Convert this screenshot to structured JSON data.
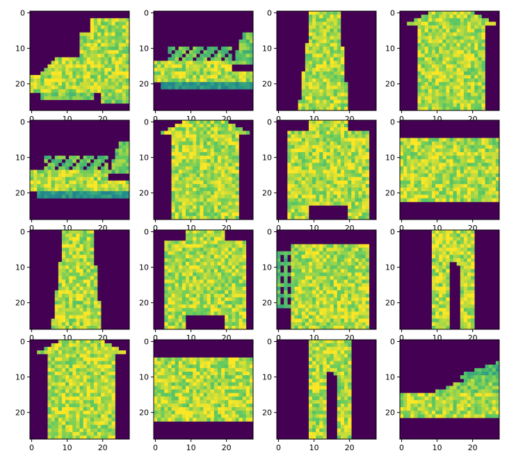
{
  "figure": {
    "rows": 4,
    "cols": 4,
    "colormap": "viridis",
    "background_color": "#440154",
    "foreground_color": "#fde725"
  },
  "chart_data": [
    {
      "type": "heatmap",
      "shape": "ankle-boot",
      "x_ticks": [
        "0",
        "10",
        "20"
      ],
      "y_ticks": [
        "0",
        "10",
        "20"
      ],
      "xlim": [
        -0.5,
        27.5
      ],
      "ylim": [
        27.5,
        -0.5
      ],
      "grid": false
    },
    {
      "type": "heatmap",
      "shape": "sandal",
      "x_ticks": [
        "0",
        "10",
        "20"
      ],
      "y_ticks": [
        "0",
        "10",
        "20"
      ],
      "xlim": [
        -0.5,
        27.5
      ],
      "ylim": [
        27.5,
        -0.5
      ],
      "grid": false
    },
    {
      "type": "heatmap",
      "shape": "dress",
      "x_ticks": [
        "0",
        "10",
        "20"
      ],
      "y_ticks": [
        "0",
        "10",
        "20"
      ],
      "xlim": [
        -0.5,
        27.5
      ],
      "ylim": [
        27.5,
        -0.5
      ],
      "grid": false
    },
    {
      "type": "heatmap",
      "shape": "coat",
      "x_ticks": [
        "0",
        "10",
        "20"
      ],
      "y_ticks": [
        "0",
        "10",
        "20"
      ],
      "xlim": [
        -0.5,
        27.5
      ],
      "ylim": [
        27.5,
        -0.5
      ],
      "grid": false
    },
    {
      "type": "heatmap",
      "shape": "sandal",
      "x_ticks": [
        "0",
        "10",
        "20"
      ],
      "y_ticks": [
        "0",
        "10",
        "20"
      ],
      "xlim": [
        -0.5,
        27.5
      ],
      "ylim": [
        27.5,
        -0.5
      ],
      "grid": false
    },
    {
      "type": "heatmap",
      "shape": "coat",
      "x_ticks": [
        "0",
        "10",
        "20"
      ],
      "y_ticks": [
        "0",
        "10",
        "20"
      ],
      "xlim": [
        -0.5,
        27.5
      ],
      "ylim": [
        27.5,
        -0.5
      ],
      "grid": false
    },
    {
      "type": "heatmap",
      "shape": "shirt",
      "x_ticks": [
        "0",
        "10",
        "20"
      ],
      "y_ticks": [
        "0",
        "10",
        "20"
      ],
      "xlim": [
        -0.5,
        27.5
      ],
      "ylim": [
        27.5,
        -0.5
      ],
      "grid": false
    },
    {
      "type": "heatmap",
      "shape": "bag",
      "x_ticks": [
        "0",
        "10",
        "20"
      ],
      "y_ticks": [
        "0",
        "10",
        "20"
      ],
      "xlim": [
        -0.5,
        27.5
      ],
      "ylim": [
        27.5,
        -0.5
      ],
      "grid": false
    },
    {
      "type": "heatmap",
      "shape": "dress",
      "x_ticks": [
        "0",
        "10",
        "20"
      ],
      "y_ticks": [
        "0",
        "10",
        "20"
      ],
      "xlim": [
        -0.5,
        27.5
      ],
      "ylim": [
        27.5,
        -0.5
      ],
      "grid": false
    },
    {
      "type": "heatmap",
      "shape": "shirt",
      "x_ticks": [
        "0",
        "10",
        "20"
      ],
      "y_ticks": [
        "0",
        "10",
        "20"
      ],
      "xlim": [
        -0.5,
        27.5
      ],
      "ylim": [
        27.5,
        -0.5
      ],
      "grid": false
    },
    {
      "type": "heatmap",
      "shape": "bag-handle",
      "x_ticks": [
        "0",
        "10",
        "20"
      ],
      "y_ticks": [
        "0",
        "10",
        "20"
      ],
      "xlim": [
        -0.5,
        27.5
      ],
      "ylim": [
        27.5,
        -0.5
      ],
      "grid": false
    },
    {
      "type": "heatmap",
      "shape": "trouser",
      "x_ticks": [
        "0",
        "10",
        "20"
      ],
      "y_ticks": [
        "0",
        "10",
        "20"
      ],
      "xlim": [
        -0.5,
        27.5
      ],
      "ylim": [
        27.5,
        -0.5
      ],
      "grid": false
    },
    {
      "type": "heatmap",
      "shape": "coat",
      "x_ticks": [
        "0",
        "10",
        "20"
      ],
      "y_ticks": [
        "0",
        "10",
        "20"
      ],
      "xlim": [
        -0.5,
        27.5
      ],
      "ylim": [
        27.5,
        -0.5
      ],
      "grid": false
    },
    {
      "type": "heatmap",
      "shape": "bag",
      "x_ticks": [
        "0",
        "10",
        "20"
      ],
      "y_ticks": [
        "0",
        "10",
        "20"
      ],
      "xlim": [
        -0.5,
        27.5
      ],
      "ylim": [
        27.5,
        -0.5
      ],
      "grid": false
    },
    {
      "type": "heatmap",
      "shape": "trouser",
      "x_ticks": [
        "0",
        "10",
        "20"
      ],
      "y_ticks": [
        "0",
        "10",
        "20"
      ],
      "xlim": [
        -0.5,
        27.5
      ],
      "ylim": [
        27.5,
        -0.5
      ],
      "grid": false
    },
    {
      "type": "heatmap",
      "shape": "sneaker",
      "x_ticks": [
        "0",
        "10",
        "20"
      ],
      "y_ticks": [
        "0",
        "10",
        "20"
      ],
      "xlim": [
        -0.5,
        27.5
      ],
      "ylim": [
        27.5,
        -0.5
      ],
      "grid": false
    }
  ]
}
